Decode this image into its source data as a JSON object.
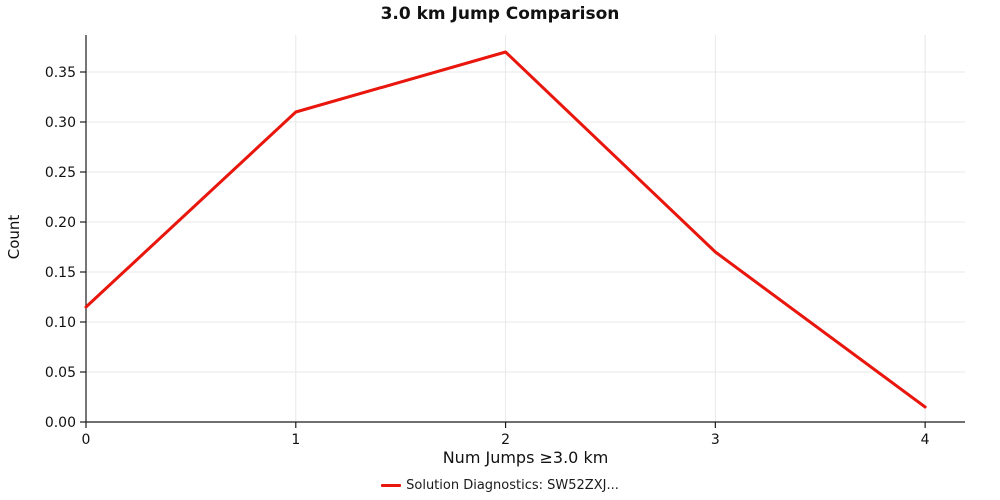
{
  "chart_data": {
    "type": "line",
    "title": "3.0 km Jump Comparison",
    "xlabel": "Num Jumps ≥3.0 km",
    "ylabel": "Count",
    "x": [
      0,
      1,
      2,
      3,
      4
    ],
    "series": [
      {
        "name": "Solution Diagnostics: SW52ZXJ...",
        "values": [
          0.115,
          0.31,
          0.37,
          0.17,
          0.015
        ],
        "color": "#e8160c"
      }
    ],
    "xlim": [
      0,
      4.19
    ],
    "ylim": [
      0,
      0.387
    ],
    "xticks": [
      0,
      1,
      2,
      3,
      4
    ],
    "xtick_labels": [
      "0",
      "1",
      "2",
      "3",
      "4"
    ],
    "yticks": [
      0.0,
      0.05,
      0.1,
      0.15,
      0.2,
      0.25,
      0.3,
      0.35
    ],
    "ytick_labels": [
      "0.00",
      "0.05",
      "0.10",
      "0.15",
      "0.20",
      "0.25",
      "0.30",
      "0.35"
    ],
    "grid": true,
    "grid_color": "#e8e8e8",
    "axis_color": "#1a1a1a",
    "legend_position": "bottom-center"
  }
}
